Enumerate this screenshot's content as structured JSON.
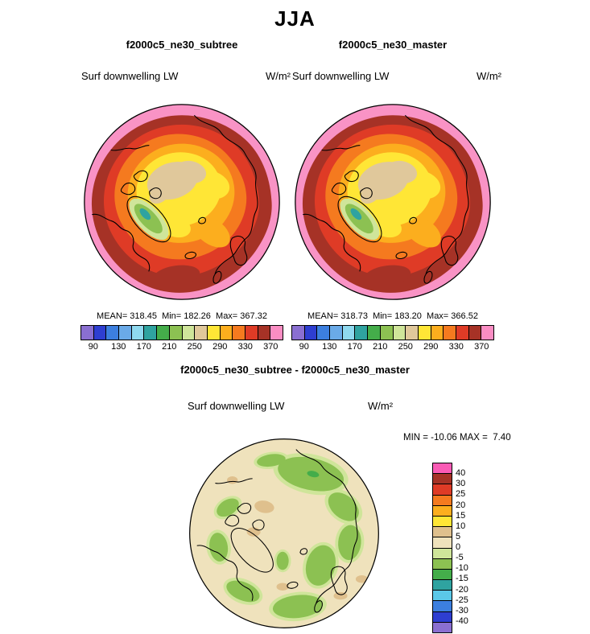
{
  "page": {
    "title": "JJA"
  },
  "panels": [
    {
      "title": "f2000c5_ne30_subtree",
      "field_label": "Surf downwelling LW",
      "units": "W/m²",
      "stats_text": "MEAN= 318.45  Min= 182.26  Max= 367.32"
    },
    {
      "title": "f2000c5_ne30_master",
      "field_label": "Surf downwelling LW",
      "units": "W/m²",
      "stats_text": "MEAN= 318.73  Min= 183.20  Max= 366.52"
    }
  ],
  "diff_panel": {
    "title": "f2000c5_ne30_subtree - f2000c5_ne30_master",
    "field_label": "Surf downwelling LW",
    "units": "W/m²",
    "minmax_text": "MIN = -10.06 MAX =  7.40"
  },
  "colorbar_main": {
    "colors": [
      "#8a6fd1",
      "#2e3ed1",
      "#3c7fdf",
      "#6aaae8",
      "#8fd9ef",
      "#2fa3a0",
      "#44ad4a",
      "#8cc152",
      "#cfe59a",
      "#e0c89b",
      "#ffe636",
      "#fcae1e",
      "#f57a1f",
      "#df3b26",
      "#a63226",
      "#fa8dc3"
    ],
    "tick_labels": [
      "90",
      "130",
      "170",
      "210",
      "250",
      "290",
      "330",
      "370"
    ]
  },
  "colorbar_diff": {
    "colors": [
      "#fa5bb5",
      "#a63226",
      "#df3b26",
      "#f57a1f",
      "#fcae1e",
      "#ffe636",
      "#dfc08d",
      "#efe2bc",
      "#cfe59a",
      "#8cc152",
      "#44ad4a",
      "#2fa3a0",
      "#5bc8e8",
      "#3c7fdf",
      "#2e3ed1",
      "#8a6fd1"
    ],
    "labels": [
      "40",
      "30",
      "25",
      "20",
      "15",
      "10",
      "5",
      "0",
      "-5",
      "-10",
      "-15",
      "-20",
      "-25",
      "-30",
      "-40"
    ]
  },
  "chart_data": [
    {
      "type": "heatmap",
      "season": "JJA",
      "title": "f2000c5_ne30_subtree",
      "variable": "Surf downwelling LW",
      "units": "W/m²",
      "projection": "north polar stereographic",
      "mean": 318.45,
      "min": 182.26,
      "max": 367.32,
      "contour_levels": [
        90,
        110,
        130,
        150,
        170,
        190,
        210,
        230,
        250,
        270,
        290,
        310,
        330,
        350,
        370
      ],
      "colorbar_position": "bottom"
    },
    {
      "type": "heatmap",
      "season": "JJA",
      "title": "f2000c5_ne30_master",
      "variable": "Surf downwelling LW",
      "units": "W/m²",
      "projection": "north polar stereographic",
      "mean": 318.73,
      "min": 183.2,
      "max": 366.52,
      "contour_levels": [
        90,
        110,
        130,
        150,
        170,
        190,
        210,
        230,
        250,
        270,
        290,
        310,
        330,
        350,
        370
      ],
      "colorbar_position": "bottom"
    },
    {
      "type": "heatmap",
      "season": "JJA",
      "title": "f2000c5_ne30_subtree - f2000c5_ne30_master",
      "variable": "Surf downwelling LW",
      "units": "W/m²",
      "projection": "north polar stereographic",
      "min": -10.06,
      "max": 7.4,
      "contour_levels": [
        -40,
        -30,
        -25,
        -20,
        -15,
        -10,
        -5,
        0,
        5,
        10,
        15,
        20,
        25,
        30,
        40
      ],
      "colorbar_position": "right"
    }
  ]
}
